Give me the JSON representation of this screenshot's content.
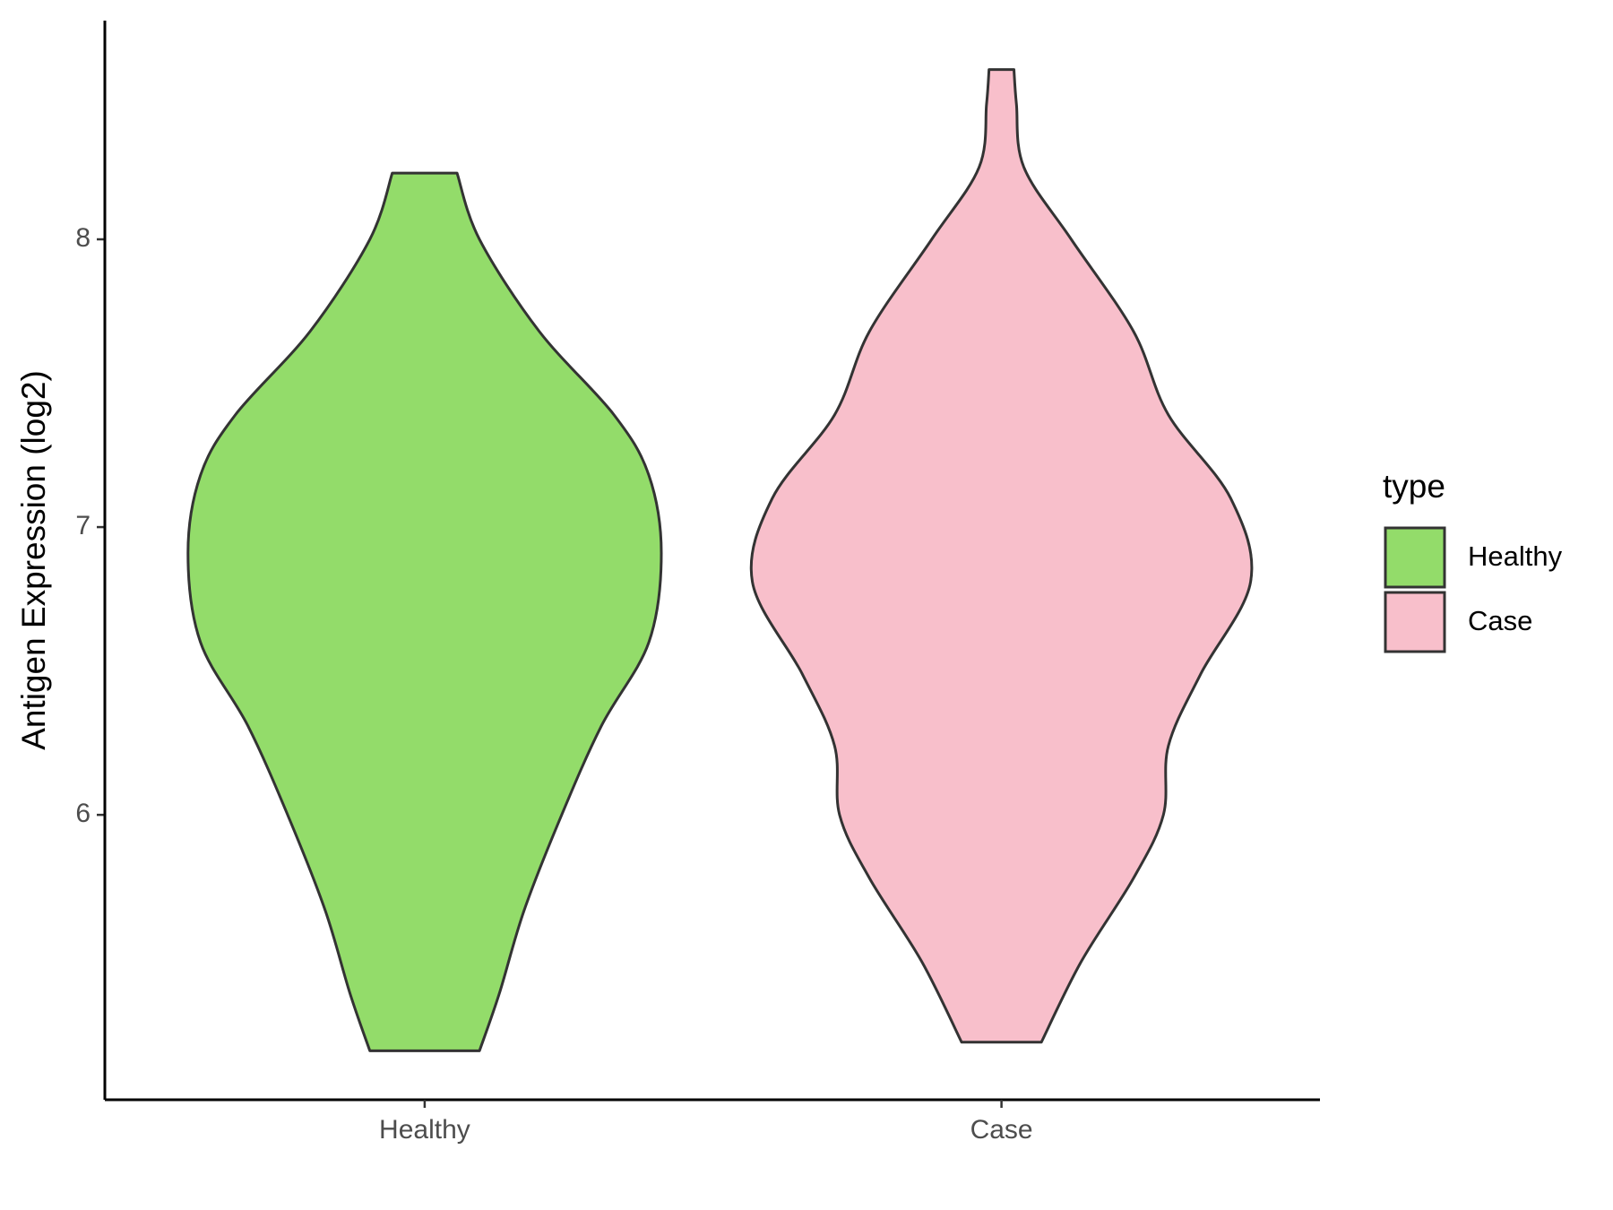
{
  "chart_data": {
    "type": "violin",
    "ylabel": "Antigen Expression (log2)",
    "categories": [
      "Healthy",
      "Case"
    ],
    "series": [
      {
        "name": "Healthy",
        "color": "#93dc6a",
        "y": [
          8.23,
          8.0,
          7.68,
          7.39,
          7.18,
          6.91,
          6.6,
          6.31,
          6.0,
          5.67,
          5.38,
          5.18
        ],
        "density": [
          0.13,
          0.22,
          0.46,
          0.76,
          0.9,
          0.95,
          0.9,
          0.71,
          0.55,
          0.4,
          0.3,
          0.22
        ]
      },
      {
        "name": "Case",
        "color": "#f8bfcb",
        "y": [
          8.59,
          8.47,
          8.25,
          8.0,
          7.68,
          7.39,
          7.1,
          6.81,
          6.49,
          6.24,
          6.0,
          5.78,
          5.49,
          5.21
        ],
        "density": [
          0.05,
          0.06,
          0.09,
          0.28,
          0.53,
          0.67,
          0.92,
          1.0,
          0.8,
          0.67,
          0.65,
          0.53,
          0.32,
          0.16
        ]
      }
    ],
    "ylim": [
      5.01,
      8.76
    ],
    "yticks": [
      6,
      7,
      8
    ],
    "legend_title": "type",
    "legend_position": "right"
  }
}
